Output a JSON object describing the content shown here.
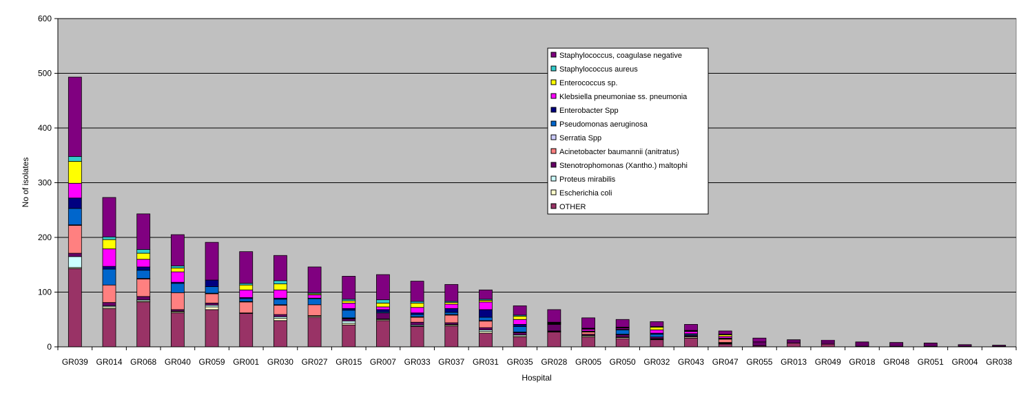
{
  "chart_data": {
    "type": "bar",
    "stacked": true,
    "xlabel": "Hospital",
    "ylabel": "No of isolates",
    "ylim": [
      0,
      600
    ],
    "yticks": [
      0,
      100,
      200,
      300,
      400,
      500,
      600
    ],
    "grid": true,
    "legend_position": "top-center",
    "plot_background": "#C0C0C0",
    "categories": [
      "GR039",
      "GR014",
      "GR068",
      "GR040",
      "GR059",
      "GR001",
      "GR030",
      "GR027",
      "GR015",
      "GR007",
      "GR033",
      "GR037",
      "GR031",
      "GR035",
      "GR028",
      "GR005",
      "GR050",
      "GR032",
      "GR043",
      "GR047",
      "GR055",
      "GR013",
      "GR049",
      "GR018",
      "GR048",
      "GR051",
      "GR004",
      "GR038"
    ],
    "series": [
      {
        "name": "OTHER",
        "color": "#993366",
        "values": [
          143,
          70,
          82,
          62,
          68,
          61,
          48,
          54,
          40,
          48,
          37,
          38,
          25,
          18,
          27,
          18,
          15,
          13,
          16,
          5,
          2,
          7,
          5,
          1,
          1,
          1,
          1,
          1
        ]
      },
      {
        "name": "Escherichia coli",
        "color": "#FFFFCC",
        "values": [
          2,
          3,
          2,
          2,
          5,
          1,
          4,
          2,
          3,
          2,
          1,
          2,
          3,
          2,
          1,
          2,
          2,
          1,
          2,
          1,
          0,
          0,
          0,
          0,
          0,
          0,
          0,
          0
        ]
      },
      {
        "name": "Proteus mirabilis",
        "color": "#CCFFFF",
        "values": [
          20,
          2,
          2,
          1,
          3,
          0,
          3,
          1,
          4,
          1,
          2,
          1,
          3,
          2,
          1,
          1,
          1,
          1,
          1,
          1,
          0,
          0,
          0,
          0,
          0,
          0,
          0,
          0
        ]
      },
      {
        "name": "Stenotrophomonas (Xantho.) maltophi",
        "color": "#660066",
        "values": [
          6,
          6,
          6,
          3,
          4,
          0,
          4,
          0,
          4,
          11,
          5,
          3,
          4,
          4,
          12,
          2,
          4,
          3,
          2,
          1,
          7,
          6,
          5,
          8,
          7,
          6,
          3,
          2
        ]
      },
      {
        "name": "Acinetobacter baumannii (anitratus)",
        "color": "#FF8080",
        "values": [
          51,
          32,
          32,
          31,
          17,
          20,
          17,
          20,
          1,
          0,
          9,
          14,
          12,
          1,
          0,
          4,
          0,
          0,
          0,
          6,
          0,
          0,
          0,
          0,
          0,
          0,
          0,
          0
        ]
      },
      {
        "name": "Serratia Spp",
        "color": "#CCCCFF",
        "values": [
          1,
          0,
          1,
          0,
          1,
          1,
          1,
          0,
          1,
          0,
          1,
          1,
          1,
          0,
          0,
          0,
          1,
          0,
          0,
          0,
          0,
          0,
          0,
          0,
          0,
          0,
          0,
          0
        ]
      },
      {
        "name": "Pseudomonas aeruginosa",
        "color": "#0066CC",
        "values": [
          30,
          29,
          15,
          17,
          12,
          5,
          10,
          11,
          14,
          2,
          4,
          4,
          6,
          10,
          1,
          1,
          8,
          5,
          2,
          1,
          0,
          0,
          0,
          0,
          0,
          0,
          0,
          0
        ]
      },
      {
        "name": "Enterobacter Spp",
        "color": "#000080",
        "values": [
          19,
          5,
          6,
          2,
          12,
          2,
          2,
          1,
          3,
          4,
          3,
          7,
          14,
          4,
          1,
          1,
          1,
          2,
          1,
          1,
          0,
          0,
          0,
          0,
          0,
          0,
          0,
          0
        ]
      },
      {
        "name": "Klebsiella pneumoniae ss. pneumonia",
        "color": "#FF00FF",
        "values": [
          27,
          32,
          14,
          19,
          0,
          14,
          15,
          6,
          10,
          5,
          10,
          8,
          14,
          9,
          0,
          3,
          2,
          6,
          4,
          3,
          0,
          0,
          2,
          0,
          0,
          0,
          0,
          0
        ]
      },
      {
        "name": "Enterococcus sp.",
        "color": "#FFFF00",
        "values": [
          40,
          17,
          11,
          7,
          0,
          9,
          11,
          2,
          4,
          7,
          8,
          3,
          3,
          6,
          1,
          1,
          1,
          5,
          1,
          3,
          0,
          0,
          0,
          0,
          0,
          0,
          0,
          0
        ]
      },
      {
        "name": "Staphylococcus aureus",
        "color": "#33CCCC",
        "values": [
          9,
          5,
          7,
          4,
          0,
          3,
          6,
          2,
          3,
          6,
          3,
          2,
          2,
          2,
          1,
          1,
          1,
          1,
          1,
          1,
          0,
          0,
          0,
          0,
          0,
          0,
          0,
          0
        ]
      },
      {
        "name": "Staphylococcus, coagulase negative",
        "color": "#800080",
        "values": [
          145,
          72,
          65,
          57,
          69,
          58,
          46,
          47,
          42,
          46,
          37,
          31,
          17,
          17,
          23,
          19,
          14,
          9,
          11,
          6,
          7,
          0,
          0,
          0,
          0,
          0,
          0,
          0
        ]
      }
    ]
  }
}
